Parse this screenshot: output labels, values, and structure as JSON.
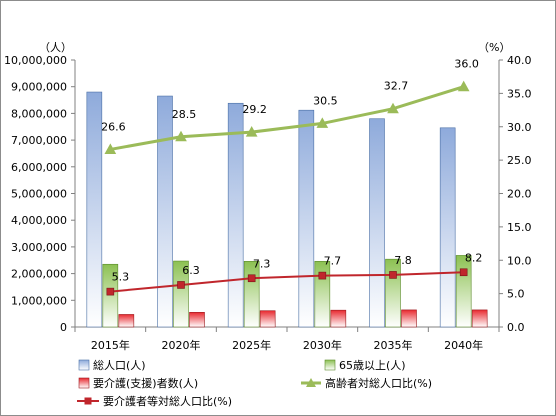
{
  "chart_data": {
    "type": "bar",
    "categories": [
      "2015年",
      "2020年",
      "2025年",
      "2030年",
      "2035年",
      "2040年"
    ],
    "y_left": {
      "unit": "（人）",
      "range": [
        0,
        10000000
      ],
      "ticks": [
        "0",
        "1,000,000",
        "2,000,000",
        "3,000,000",
        "4,000,000",
        "5,000,000",
        "6,000,000",
        "7,000,000",
        "8,000,000",
        "9,000,000",
        "10,000,000"
      ]
    },
    "y_right": {
      "unit": "（%）",
      "range": [
        0,
        40
      ],
      "ticks": [
        "0.0",
        "5.0",
        "10.0",
        "15.0",
        "20.0",
        "25.0",
        "30.0",
        "35.0",
        "40.0"
      ]
    },
    "series": [
      {
        "name": "総人口(人)",
        "kind": "bar",
        "axis": "left",
        "color": "#8eaadb",
        "values": [
          8800000,
          8650000,
          8380000,
          8120000,
          7800000,
          7460000
        ]
      },
      {
        "name": "65歳以上(人)",
        "kind": "bar",
        "axis": "left",
        "color": "#8cc152",
        "values": [
          2350000,
          2470000,
          2460000,
          2460000,
          2540000,
          2680000
        ]
      },
      {
        "name": "要介護(支援)者数(人)",
        "kind": "bar",
        "axis": "left",
        "color": "#e8292f",
        "values": [
          470000,
          550000,
          610000,
          630000,
          640000,
          640000
        ]
      },
      {
        "name": "高齢者対総人口比(%)",
        "kind": "line",
        "axis": "right",
        "color": "#9bbb59",
        "marker": "triangle",
        "values": [
          26.6,
          28.5,
          29.2,
          30.5,
          32.7,
          36.0
        ],
        "labels": [
          "26.6",
          "28.5",
          "29.2",
          "30.5",
          "32.7",
          "36.0"
        ]
      },
      {
        "name": "要介護者等対総人口比(%)",
        "kind": "line",
        "axis": "right",
        "color": "#c0262c",
        "marker": "square",
        "values": [
          5.3,
          6.3,
          7.3,
          7.7,
          7.8,
          8.2
        ],
        "labels": [
          "5.3",
          "6.3",
          "7.3",
          "7.7",
          "7.8",
          "8.2"
        ]
      }
    ],
    "legend_position": "bottom",
    "grid": false
  }
}
